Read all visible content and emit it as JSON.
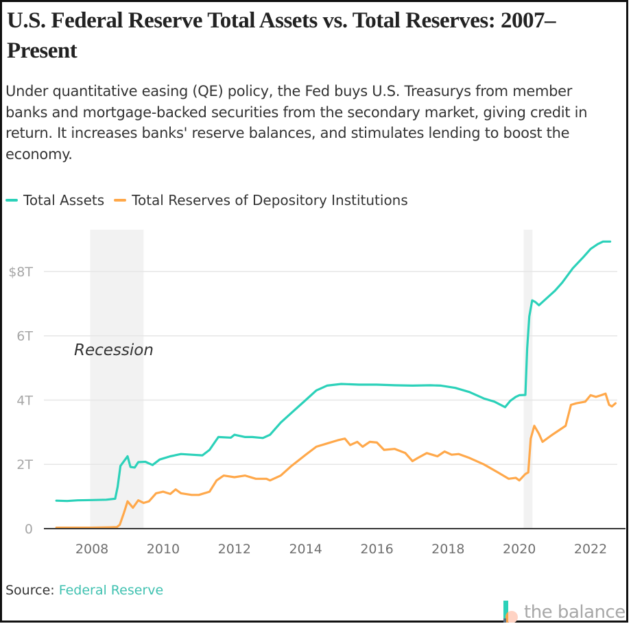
{
  "header": {
    "title": "U.S. Federal Reserve Total Assets vs. Total Reserves: 2007–Present",
    "subtitle": "Under quantitative easing (QE) policy, the Fed buys U.S. Treasurys from member banks and mortgage-backed securities from the secondary market, giving credit in return. It increases banks' reserve balances, and stimulates lending to boost the economy."
  },
  "footer": {
    "source_label": "Source: ",
    "source_link": "Federal Reserve",
    "logo_text": "the balance"
  },
  "colors": {
    "total_assets": "#2bd1b9",
    "total_reserves": "#ffa84a",
    "recession": "#f2f2f2",
    "grid": "#e6e6e6",
    "axis": "#333333",
    "tick_text": "#a6a6a6"
  },
  "chart_data": {
    "type": "line",
    "title": "U.S. Federal Reserve Total Assets vs. Total Reserves: 2007–Present",
    "xlabel": "",
    "ylabel": "",
    "xlim": [
      2006.65,
      2022.75
    ],
    "ylim": [
      0,
      9.3
    ],
    "grid": true,
    "legend_position": "top-left",
    "x_ticks": [
      2008,
      2010,
      2012,
      2014,
      2016,
      2018,
      2020,
      2022
    ],
    "x_tick_labels": [
      "2008",
      "2010",
      "2012",
      "2014",
      "2016",
      "2018",
      "2020",
      "2022"
    ],
    "y_ticks": [
      0,
      2,
      4,
      6,
      8
    ],
    "y_tick_labels": [
      "0",
      "2T",
      "4T",
      "6T",
      "$8T"
    ],
    "annotations": [
      {
        "text": "Recession",
        "type": "shaded-band",
        "x_start": 2007.95,
        "x_end": 2009.45
      },
      {
        "text": "",
        "type": "shaded-band",
        "x_start": 2020.12,
        "x_end": 2020.37
      }
    ],
    "series": [
      {
        "name": "Total Assets",
        "color": "#2bd1b9",
        "x": [
          2007.0,
          2007.3,
          2007.6,
          2008.0,
          2008.4,
          2008.65,
          2008.72,
          2008.8,
          2009.0,
          2009.08,
          2009.2,
          2009.3,
          2009.5,
          2009.7,
          2009.9,
          2010.2,
          2010.5,
          2010.8,
          2011.1,
          2011.3,
          2011.55,
          2011.9,
          2012.0,
          2012.3,
          2012.5,
          2012.8,
          2013.0,
          2013.3,
          2013.6,
          2014.0,
          2014.3,
          2014.6,
          2015.0,
          2015.5,
          2016.0,
          2016.5,
          2017.0,
          2017.5,
          2017.8,
          2018.2,
          2018.6,
          2019.0,
          2019.3,
          2019.6,
          2019.75,
          2019.9,
          2020.0,
          2020.17,
          2020.22,
          2020.28,
          2020.36,
          2020.45,
          2020.55,
          2020.8,
          2021.0,
          2021.2,
          2021.5,
          2021.8,
          2022.0,
          2022.2,
          2022.35,
          2022.55
        ],
        "values": [
          0.87,
          0.86,
          0.88,
          0.89,
          0.9,
          0.93,
          1.3,
          1.95,
          2.25,
          1.92,
          1.9,
          2.07,
          2.08,
          1.98,
          2.15,
          2.25,
          2.32,
          2.3,
          2.28,
          2.45,
          2.85,
          2.83,
          2.92,
          2.85,
          2.85,
          2.82,
          2.92,
          3.3,
          3.6,
          4.0,
          4.3,
          4.45,
          4.5,
          4.48,
          4.48,
          4.46,
          4.45,
          4.46,
          4.45,
          4.38,
          4.25,
          4.05,
          3.95,
          3.78,
          3.98,
          4.1,
          4.15,
          4.16,
          5.6,
          6.6,
          7.1,
          7.05,
          6.95,
          7.2,
          7.4,
          7.65,
          8.1,
          8.45,
          8.7,
          8.85,
          8.93,
          8.93
        ]
      },
      {
        "name": "Total Reserves of Depository Institutions",
        "color": "#ffa84a",
        "x": [
          2007.0,
          2007.5,
          2008.0,
          2008.5,
          2008.7,
          2008.78,
          2008.9,
          2009.0,
          2009.15,
          2009.3,
          2009.45,
          2009.6,
          2009.8,
          2010.0,
          2010.2,
          2010.35,
          2010.5,
          2010.8,
          2011.0,
          2011.3,
          2011.5,
          2011.7,
          2012.0,
          2012.3,
          2012.6,
          2012.9,
          2013.0,
          2013.3,
          2013.6,
          2014.0,
          2014.3,
          2014.6,
          2014.9,
          2015.1,
          2015.25,
          2015.45,
          2015.6,
          2015.8,
          2016.0,
          2016.2,
          2016.5,
          2016.8,
          2017.0,
          2017.15,
          2017.4,
          2017.7,
          2017.9,
          2018.1,
          2018.3,
          2018.6,
          2019.0,
          2019.4,
          2019.7,
          2019.9,
          2020.0,
          2020.17,
          2020.25,
          2020.32,
          2020.42,
          2020.55,
          2020.65,
          2020.9,
          2021.1,
          2021.3,
          2021.45,
          2021.6,
          2021.85,
          2022.0,
          2022.15,
          2022.3,
          2022.42,
          2022.52,
          2022.6,
          2022.7
        ],
        "values": [
          0.03,
          0.03,
          0.03,
          0.04,
          0.05,
          0.12,
          0.5,
          0.85,
          0.65,
          0.88,
          0.8,
          0.85,
          1.1,
          1.15,
          1.08,
          1.22,
          1.1,
          1.05,
          1.05,
          1.15,
          1.5,
          1.65,
          1.6,
          1.65,
          1.55,
          1.55,
          1.5,
          1.65,
          1.95,
          2.3,
          2.55,
          2.65,
          2.75,
          2.8,
          2.6,
          2.7,
          2.55,
          2.7,
          2.68,
          2.45,
          2.48,
          2.35,
          2.1,
          2.2,
          2.35,
          2.25,
          2.4,
          2.3,
          2.32,
          2.2,
          2.0,
          1.75,
          1.55,
          1.58,
          1.5,
          1.7,
          1.75,
          2.8,
          3.2,
          2.95,
          2.7,
          2.9,
          3.05,
          3.2,
          3.85,
          3.9,
          3.95,
          4.15,
          4.1,
          4.15,
          4.2,
          3.85,
          3.8,
          3.9
        ]
      }
    ]
  }
}
